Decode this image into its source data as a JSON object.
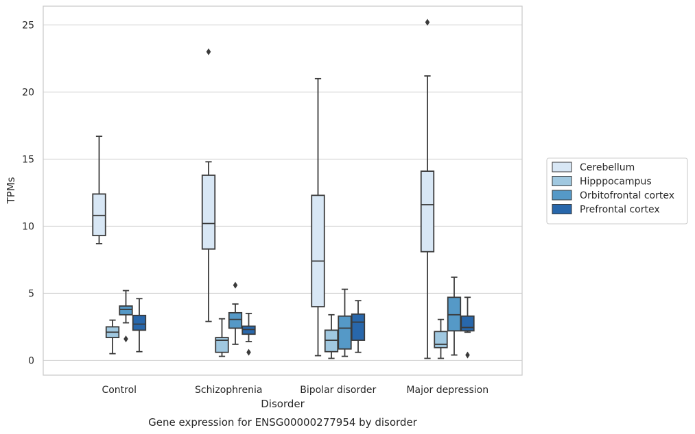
{
  "caption": "Gene expression for ENSG00000277954 by disorder",
  "chart_data": {
    "type": "boxplot",
    "title": "",
    "xlabel": "Disorder",
    "ylabel": "TPMs",
    "ylim": [
      -1.1,
      26.4
    ],
    "yticks": [
      0,
      5,
      10,
      15,
      20,
      25
    ],
    "grid": "horizontal",
    "legend_position": "right",
    "categories": [
      "Control",
      "Schizophrenia",
      "Bipolar disorder",
      "Major depression"
    ],
    "series": [
      {
        "name": "Cerebellum",
        "color": "#d8e7f5",
        "boxes": [
          {
            "min": 8.7,
            "q1": 9.3,
            "median": 10.8,
            "q3": 12.4,
            "max": 16.7,
            "outliers": []
          },
          {
            "min": 2.9,
            "q1": 8.3,
            "median": 10.2,
            "q3": 13.8,
            "max": 14.8,
            "outliers": [
              23.0
            ]
          },
          {
            "min": 0.35,
            "q1": 4.0,
            "median": 7.4,
            "q3": 12.3,
            "max": 21.0,
            "outliers": []
          },
          {
            "min": 0.15,
            "q1": 8.1,
            "median": 11.6,
            "q3": 14.1,
            "max": 21.2,
            "outliers": [
              25.2
            ]
          }
        ]
      },
      {
        "name": "Hipppocampus",
        "color": "#a0c8e0",
        "boxes": [
          {
            "min": 0.5,
            "q1": 1.7,
            "median": 2.1,
            "q3": 2.5,
            "max": 3.0,
            "outliers": []
          },
          {
            "min": 0.3,
            "q1": 0.6,
            "median": 1.5,
            "q3": 1.7,
            "max": 3.1,
            "outliers": []
          },
          {
            "min": 0.15,
            "q1": 0.65,
            "median": 1.5,
            "q3": 2.25,
            "max": 3.4,
            "outliers": []
          },
          {
            "min": 0.15,
            "q1": 0.95,
            "median": 1.2,
            "q3": 2.15,
            "max": 3.05,
            "outliers": []
          }
        ]
      },
      {
        "name": "Orbitofrontal cortex",
        "color": "#5599c7",
        "boxes": [
          {
            "min": 2.8,
            "q1": 3.4,
            "median": 3.8,
            "q3": 4.05,
            "max": 5.2,
            "outliers": [
              1.6
            ]
          },
          {
            "min": 1.2,
            "q1": 2.4,
            "median": 3.05,
            "q3": 3.55,
            "max": 4.2,
            "outliers": [
              5.6
            ]
          },
          {
            "min": 0.3,
            "q1": 0.85,
            "median": 2.4,
            "q3": 3.3,
            "max": 5.3,
            "outliers": []
          },
          {
            "min": 0.4,
            "q1": 2.2,
            "median": 3.4,
            "q3": 4.7,
            "max": 6.2,
            "outliers": []
          }
        ]
      },
      {
        "name": "Prefrontal cortex",
        "color": "#2867ab",
        "boxes": [
          {
            "min": 0.65,
            "q1": 2.25,
            "median": 2.7,
            "q3": 3.35,
            "max": 4.6,
            "outliers": []
          },
          {
            "min": 1.4,
            "q1": 1.95,
            "median": 2.3,
            "q3": 2.55,
            "max": 3.5,
            "outliers": [
              0.6
            ]
          },
          {
            "min": 0.6,
            "q1": 1.5,
            "median": 2.85,
            "q3": 3.45,
            "max": 4.45,
            "outliers": []
          },
          {
            "min": 2.1,
            "q1": 2.2,
            "median": 2.45,
            "q3": 3.3,
            "max": 4.7,
            "outliers": [
              0.4
            ]
          }
        ]
      }
    ]
  }
}
